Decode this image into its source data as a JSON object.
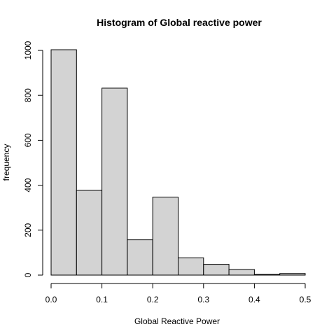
{
  "chart_data": {
    "type": "bar",
    "title": "Histogram of Global reactive power",
    "xlabel": "Global Reactive Power",
    "ylabel": "frequency",
    "bins": [
      {
        "from": 0.0,
        "to": 0.05,
        "count": 1003
      },
      {
        "from": 0.05,
        "to": 0.1,
        "count": 377
      },
      {
        "from": 0.1,
        "to": 0.15,
        "count": 832
      },
      {
        "from": 0.15,
        "to": 0.2,
        "count": 157
      },
      {
        "from": 0.2,
        "to": 0.25,
        "count": 347
      },
      {
        "from": 0.25,
        "to": 0.3,
        "count": 77
      },
      {
        "from": 0.3,
        "to": 0.35,
        "count": 48
      },
      {
        "from": 0.35,
        "to": 0.4,
        "count": 25
      },
      {
        "from": 0.4,
        "to": 0.45,
        "count": 3
      },
      {
        "from": 0.45,
        "to": 0.5,
        "count": 7
      }
    ],
    "x_ticks": [
      "0.0",
      "0.1",
      "0.2",
      "0.3",
      "0.4",
      "0.5"
    ],
    "x_tick_values": [
      0.0,
      0.1,
      0.2,
      0.3,
      0.4,
      0.5
    ],
    "y_ticks": [
      "0",
      "200",
      "400",
      "600",
      "800",
      "1000"
    ],
    "y_tick_values": [
      0,
      200,
      400,
      600,
      800,
      1000
    ],
    "xlim": [
      0.0,
      0.5
    ],
    "ylim": [
      0,
      1000
    ],
    "grid": false,
    "legend": "none",
    "colors": {
      "bar_fill": "#d3d3d3",
      "bar_stroke": "#000000",
      "background": "#ffffff"
    }
  }
}
